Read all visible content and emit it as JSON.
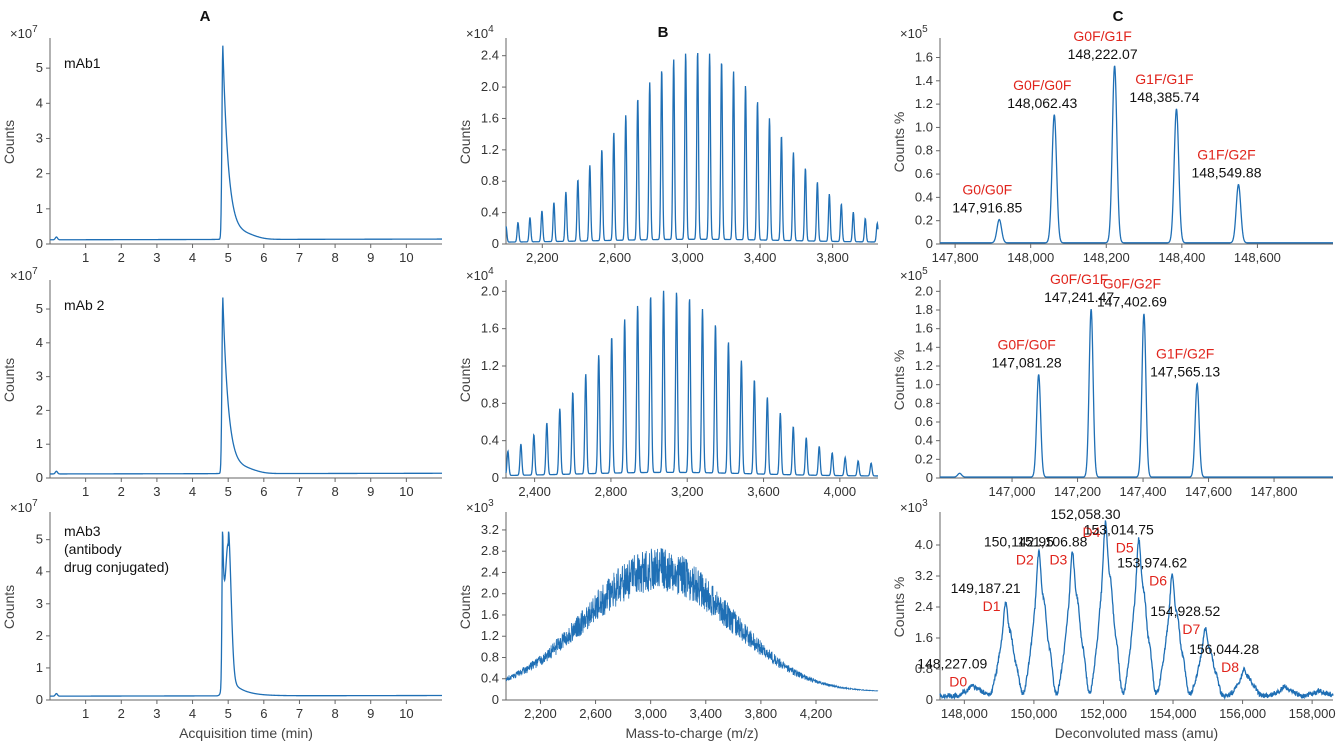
{
  "column_titles": [
    "A",
    "B",
    "C"
  ],
  "chart_data": [
    {
      "id": "A1",
      "type": "line",
      "col": 0,
      "row": 0,
      "series_label": "mAb1",
      "ylabel": "Counts",
      "multiplier": "×10^7",
      "mult_base": "×10",
      "mult_exp": "7",
      "xlim": [
        0,
        11
      ],
      "ylim": [
        0,
        5.8
      ],
      "xticks": [
        1,
        2,
        3,
        4,
        5,
        6,
        7,
        8,
        9,
        10
      ],
      "xticklabels": [
        "1",
        "2",
        "3",
        "4",
        "5",
        "6",
        "7",
        "8",
        "9",
        "10"
      ],
      "yticks": [
        0,
        1,
        2,
        3,
        4,
        5
      ],
      "yticklabels": [
        "0",
        "1",
        "2",
        "3",
        "4",
        "5"
      ],
      "profile": "lc_single",
      "peak_x": 4.85,
      "peak_y": 5.5,
      "baseline": 0.12
    },
    {
      "id": "A2",
      "type": "line",
      "col": 0,
      "row": 1,
      "series_label": "mAb 2",
      "ylabel": "Counts",
      "multiplier": "×10^7",
      "mult_base": "×10",
      "mult_exp": "7",
      "xlim": [
        0,
        11
      ],
      "ylim": [
        0,
        5.8
      ],
      "xticks": [
        1,
        2,
        3,
        4,
        5,
        6,
        7,
        8,
        9,
        10
      ],
      "xticklabels": [
        "1",
        "2",
        "3",
        "4",
        "5",
        "6",
        "7",
        "8",
        "9",
        "10"
      ],
      "yticks": [
        0,
        1,
        2,
        3,
        4,
        5
      ],
      "yticklabels": [
        "0",
        "1",
        "2",
        "3",
        "4",
        "5"
      ],
      "profile": "lc_single",
      "peak_x": 4.85,
      "peak_y": 5.2,
      "baseline": 0.12
    },
    {
      "id": "A3",
      "type": "line",
      "col": 0,
      "row": 2,
      "series_label_lines": [
        "mAb3",
        "(antibody",
        "drug conjugated)"
      ],
      "ylabel": "Counts",
      "multiplier": "×10^7",
      "mult_base": "×10",
      "mult_exp": "7",
      "xlabel": "Acquisition time (min)",
      "xlim": [
        0,
        11
      ],
      "ylim": [
        0,
        5.8
      ],
      "xticks": [
        1,
        2,
        3,
        4,
        5,
        6,
        7,
        8,
        9,
        10
      ],
      "xticklabels": [
        "1",
        "2",
        "3",
        "4",
        "5",
        "6",
        "7",
        "8",
        "9",
        "10"
      ],
      "yticks": [
        0,
        1,
        2,
        3,
        4,
        5
      ],
      "yticklabels": [
        "0",
        "1",
        "2",
        "3",
        "4",
        "5"
      ],
      "profile": "lc_double",
      "peak_x": 4.85,
      "peak_y": 5.25,
      "peak2_x": 5.0,
      "peak2_y": 4.5,
      "baseline": 0.12
    },
    {
      "id": "B1",
      "type": "line",
      "col": 1,
      "row": 0,
      "ylabel": "Counts",
      "multiplier": "×10^4",
      "mult_base": "×10",
      "mult_exp": "4",
      "xlim": [
        2000,
        4050
      ],
      "ylim": [
        0,
        2.6
      ],
      "xticks": [
        2200,
        2600,
        3000,
        3400,
        3800
      ],
      "xticklabels": [
        "2,200",
        "2,600",
        "3,000",
        "3,400",
        "3,800"
      ],
      "yticks": [
        0,
        0.4,
        0.8,
        1.2,
        1.6,
        2.0,
        2.4
      ],
      "yticklabels": [
        "0",
        "0.4",
        "0.8",
        "1.2",
        "1.6",
        "2.0",
        "2.4"
      ],
      "profile": "ms_comb",
      "center": 3050,
      "width": 420,
      "peak_max": 2.3,
      "start_x": 2000,
      "spacing": 66
    },
    {
      "id": "B2",
      "type": "line",
      "col": 1,
      "row": 1,
      "ylabel": "Counts",
      "multiplier": "×10^4",
      "mult_base": "×10",
      "mult_exp": "4",
      "xlim": [
        2250,
        4200
      ],
      "ylim": [
        0,
        2.1
      ],
      "xticks": [
        2400,
        2800,
        3200,
        3600,
        4000
      ],
      "xticklabels": [
        "2,400",
        "2,800",
        "3,200",
        "3,600",
        "4,000"
      ],
      "yticks": [
        0,
        0.4,
        0.8,
        1.2,
        1.6,
        2.0
      ],
      "yticklabels": [
        "0",
        "0.4",
        "0.8",
        "1.2",
        "1.6",
        "2.0"
      ],
      "profile": "ms_comb",
      "center": 3100,
      "width": 380,
      "peak_max": 1.85,
      "start_x": 2260,
      "spacing": 68
    },
    {
      "id": "B3",
      "type": "line",
      "col": 1,
      "row": 2,
      "ylabel": "Counts",
      "multiplier": "×10^3",
      "mult_base": "×10",
      "mult_exp": "3",
      "xlabel": "Mass-to-charge (m/z)",
      "xlim": [
        1950,
        4650
      ],
      "ylim": [
        0,
        3.5
      ],
      "xticks": [
        2200,
        2600,
        3000,
        3400,
        3800,
        4200
      ],
      "xticklabels": [
        "2,200",
        "2,600",
        "3,000",
        "3,400",
        "3,800",
        "4,200"
      ],
      "yticks": [
        0,
        0.4,
        0.8,
        1.2,
        1.6,
        2.0,
        2.4,
        2.8,
        3.2
      ],
      "yticklabels": [
        "0",
        "0.4",
        "0.8",
        "1.2",
        "1.6",
        "2.0",
        "2.4",
        "2.8",
        "3.2"
      ],
      "profile": "ms_dense",
      "center": 3050,
      "width": 520,
      "peak_max": 3.2,
      "floor": 0.15
    },
    {
      "id": "C1",
      "type": "line",
      "col": 2,
      "row": 0,
      "ylabel": "Counts %",
      "multiplier": "×10^5",
      "mult_base": "×10",
      "mult_exp": "5",
      "xlim": [
        147760,
        148800
      ],
      "ylim": [
        0,
        1.75
      ],
      "xticks": [
        147800,
        148000,
        148200,
        148400,
        148600
      ],
      "xticklabels": [
        "147,800",
        "148,000",
        "148,200",
        "148,400",
        "148,600"
      ],
      "yticks": [
        0,
        0.2,
        0.4,
        0.6,
        0.8,
        1.0,
        1.2,
        1.4,
        1.6
      ],
      "yticklabels": [
        "0",
        "0.2",
        "0.4",
        "0.6",
        "0.8",
        "1.0",
        "1.2",
        "1.4",
        "1.6"
      ],
      "profile": "deconv_peaks",
      "peak_width": 6,
      "peaks": [
        {
          "x": 147916.85,
          "y": 0.2,
          "glycan": "G0/G0F",
          "mass": "147,916.85"
        },
        {
          "x": 148062.43,
          "y": 1.1,
          "glycan": "G0F/G0F",
          "mass": "148,062.43"
        },
        {
          "x": 148222.07,
          "y": 1.52,
          "glycan": "G0F/G1F",
          "mass": "148,222.07"
        },
        {
          "x": 148385.74,
          "y": 1.15,
          "glycan": "G1F/G1F",
          "mass": "148,385.74"
        },
        {
          "x": 148549.88,
          "y": 0.5,
          "glycan": "G1F/G2F",
          "mass": "148,549.88"
        }
      ]
    },
    {
      "id": "C2",
      "type": "line",
      "col": 2,
      "row": 1,
      "ylabel": "Counts %",
      "multiplier": "×10^5",
      "mult_base": "×10",
      "mult_exp": "5",
      "xlim": [
        146780,
        147980
      ],
      "ylim": [
        0,
        2.1
      ],
      "xticks": [
        147000,
        147200,
        147400,
        147600,
        147800
      ],
      "xticklabels": [
        "147,000",
        "147,200",
        "147,400",
        "147,600",
        "147,800"
      ],
      "yticks": [
        0,
        0.2,
        0.4,
        0.6,
        0.8,
        1.0,
        1.2,
        1.4,
        1.6,
        1.8,
        2.0
      ],
      "yticklabels": [
        "0",
        "0.2",
        "0.4",
        "0.6",
        "0.8",
        "1.0",
        "1.2",
        "1.4",
        "1.6",
        "1.8",
        "2.0"
      ],
      "profile": "deconv_peaks",
      "peak_width": 6,
      "peaks": [
        {
          "x": 146840,
          "y": 0.04
        },
        {
          "x": 147081.28,
          "y": 1.1,
          "glycan": "G0F/G0F",
          "mass": "147,081.28"
        },
        {
          "x": 147241.47,
          "y": 1.8,
          "glycan": "G0F/G1F",
          "mass": "147,241.47"
        },
        {
          "x": 147402.69,
          "y": 1.75,
          "glycan": "G0F/G2F",
          "mass": "147,402.69"
        },
        {
          "x": 147565.13,
          "y": 1.0,
          "glycan": "G1F/G2F",
          "mass": "147,565.13"
        }
      ]
    },
    {
      "id": "C3",
      "type": "line",
      "col": 2,
      "row": 2,
      "ylabel": "Counts %",
      "multiplier": "×10^3",
      "mult_base": "×10",
      "mult_exp": "3",
      "xlabel": "Deconvoluted mass (amu)",
      "xlim": [
        147300,
        158600
      ],
      "ylim": [
        0,
        4.8
      ],
      "xticks": [
        148000,
        150000,
        152000,
        154000,
        156000,
        158000
      ],
      "xticklabels": [
        "148,000",
        "150,000",
        "152,000",
        "154,000",
        "156,000",
        "158,000"
      ],
      "yticks": [
        0,
        0.8,
        1.6,
        2.4,
        3.2,
        4.0
      ],
      "yticklabels": [
        "0",
        "0.8",
        "1.6",
        "2.4",
        "3.2",
        "4.0"
      ],
      "profile": "adc_clusters",
      "cluster_width": 70,
      "cluster_spread": [
        0,
        160,
        -150,
        320,
        -290
      ],
      "cluster_scale": [
        1,
        0.62,
        0.45,
        0.3,
        0.18
      ],
      "peaks": [
        {
          "x": 148227.09,
          "y": 0.25,
          "dar": "D0",
          "mass": "148,227.09"
        },
        {
          "x": 149187.21,
          "y": 2.2,
          "dar": "D1",
          "mass": "149,187.21"
        },
        {
          "x": 150142.95,
          "y": 3.4,
          "dar": "D2",
          "mass": "150,142.95"
        },
        {
          "x": 151106.88,
          "y": 3.4,
          "dar": "D3",
          "mass": "151,106.88"
        },
        {
          "x": 152058.3,
          "y": 4.1,
          "dar": "D4",
          "mass": "152,058.30"
        },
        {
          "x": 153014.75,
          "y": 3.7,
          "dar": "D5",
          "mass": "153,014.75"
        },
        {
          "x": 153974.62,
          "y": 2.85,
          "dar": "D6",
          "mass": "153,974.62"
        },
        {
          "x": 154928.52,
          "y": 1.6,
          "dar": "D7",
          "mass": "154,928.52"
        },
        {
          "x": 156044.28,
          "y": 0.62,
          "dar": "D8",
          "mass": "156,044.28"
        },
        {
          "x": 157200,
          "y": 0.22
        },
        {
          "x": 158200,
          "y": 0.12
        }
      ]
    }
  ],
  "colors": {
    "trace": "#1f6fb5",
    "axis": "#555555",
    "annotation_red": "#e0241c",
    "text": "#111111"
  }
}
